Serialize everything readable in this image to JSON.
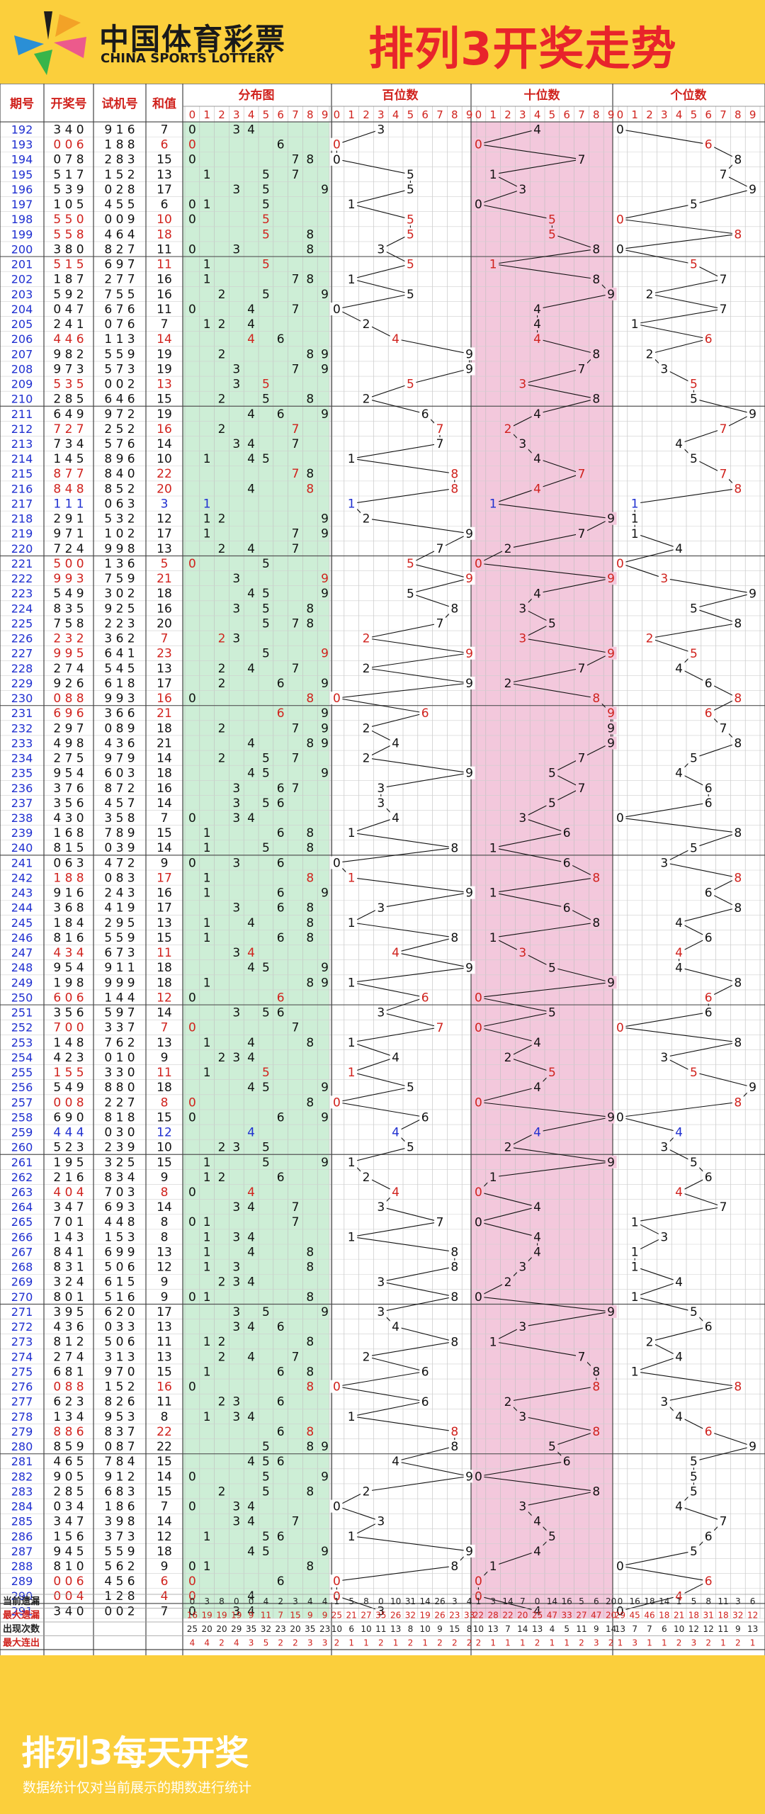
{
  "header": {
    "logo_cn": "中国体育彩票",
    "logo_en": "CHINA SPORTS LOTTERY",
    "title": "排列3开奖走势"
  },
  "footer": {
    "title": "排列3每天开奖",
    "note": "数据统计仅对当前展示的期数进行统计"
  },
  "chart_data": {
    "type": "table",
    "title": "排列3开奖走势",
    "columns": [
      "期号",
      "开奖号",
      "试机号",
      "和值",
      "分布图",
      "百位数",
      "十位数",
      "个位数"
    ],
    "digit_labels": [
      "0",
      "1",
      "2",
      "3",
      "4",
      "5",
      "6",
      "7",
      "8",
      "9"
    ],
    "colors": {
      "red": "#d0221d",
      "blue": "#1f2fd0",
      "green_bg": "#cdeed6",
      "pink_bg": "#f3c8dc",
      "header_red": "#d0221d"
    },
    "rows": [
      {
        "issue": "192",
        "draw": "340",
        "test": "916",
        "sum": "7"
      },
      {
        "issue": "193",
        "draw": "006",
        "test": "188",
        "sum": "6"
      },
      {
        "issue": "194",
        "draw": "078",
        "test": "283",
        "sum": "15"
      },
      {
        "issue": "195",
        "draw": "517",
        "test": "152",
        "sum": "13"
      },
      {
        "issue": "196",
        "draw": "539",
        "test": "028",
        "sum": "17"
      },
      {
        "issue": "197",
        "draw": "105",
        "test": "455",
        "sum": "6"
      },
      {
        "issue": "198",
        "draw": "550",
        "test": "009",
        "sum": "10"
      },
      {
        "issue": "199",
        "draw": "558",
        "test": "464",
        "sum": "18"
      },
      {
        "issue": "200",
        "draw": "380",
        "test": "827",
        "sum": "11"
      },
      {
        "issue": "201",
        "draw": "515",
        "test": "697",
        "sum": "11"
      },
      {
        "issue": "202",
        "draw": "187",
        "test": "277",
        "sum": "16"
      },
      {
        "issue": "203",
        "draw": "592",
        "test": "755",
        "sum": "16"
      },
      {
        "issue": "204",
        "draw": "047",
        "test": "676",
        "sum": "11"
      },
      {
        "issue": "205",
        "draw": "241",
        "test": "076",
        "sum": "7"
      },
      {
        "issue": "206",
        "draw": "446",
        "test": "113",
        "sum": "14"
      },
      {
        "issue": "207",
        "draw": "982",
        "test": "559",
        "sum": "19"
      },
      {
        "issue": "208",
        "draw": "973",
        "test": "573",
        "sum": "19"
      },
      {
        "issue": "209",
        "draw": "535",
        "test": "002",
        "sum": "13"
      },
      {
        "issue": "210",
        "draw": "285",
        "test": "646",
        "sum": "15"
      },
      {
        "issue": "211",
        "draw": "649",
        "test": "972",
        "sum": "19"
      },
      {
        "issue": "212",
        "draw": "727",
        "test": "252",
        "sum": "16"
      },
      {
        "issue": "213",
        "draw": "734",
        "test": "576",
        "sum": "14"
      },
      {
        "issue": "214",
        "draw": "145",
        "test": "896",
        "sum": "10"
      },
      {
        "issue": "215",
        "draw": "877",
        "test": "840",
        "sum": "22"
      },
      {
        "issue": "216",
        "draw": "848",
        "test": "852",
        "sum": "20"
      },
      {
        "issue": "217",
        "draw": "111",
        "test": "063",
        "sum": "3"
      },
      {
        "issue": "218",
        "draw": "291",
        "test": "532",
        "sum": "12"
      },
      {
        "issue": "219",
        "draw": "971",
        "test": "102",
        "sum": "17"
      },
      {
        "issue": "220",
        "draw": "724",
        "test": "998",
        "sum": "13"
      },
      {
        "issue": "221",
        "draw": "500",
        "test": "136",
        "sum": "5"
      },
      {
        "issue": "222",
        "draw": "993",
        "test": "759",
        "sum": "21"
      },
      {
        "issue": "223",
        "draw": "549",
        "test": "302",
        "sum": "18"
      },
      {
        "issue": "224",
        "draw": "835",
        "test": "925",
        "sum": "16"
      },
      {
        "issue": "225",
        "draw": "758",
        "test": "223",
        "sum": "20"
      },
      {
        "issue": "226",
        "draw": "232",
        "test": "362",
        "sum": "7"
      },
      {
        "issue": "227",
        "draw": "995",
        "test": "641",
        "sum": "23"
      },
      {
        "issue": "228",
        "draw": "274",
        "test": "545",
        "sum": "13"
      },
      {
        "issue": "229",
        "draw": "926",
        "test": "618",
        "sum": "17"
      },
      {
        "issue": "230",
        "draw": "088",
        "test": "993",
        "sum": "16"
      },
      {
        "issue": "231",
        "draw": "696",
        "test": "366",
        "sum": "21"
      },
      {
        "issue": "232",
        "draw": "297",
        "test": "089",
        "sum": "18"
      },
      {
        "issue": "233",
        "draw": "498",
        "test": "436",
        "sum": "21"
      },
      {
        "issue": "234",
        "draw": "275",
        "test": "979",
        "sum": "14"
      },
      {
        "issue": "235",
        "draw": "954",
        "test": "603",
        "sum": "18"
      },
      {
        "issue": "236",
        "draw": "376",
        "test": "872",
        "sum": "16"
      },
      {
        "issue": "237",
        "draw": "356",
        "test": "457",
        "sum": "14"
      },
      {
        "issue": "238",
        "draw": "430",
        "test": "358",
        "sum": "7"
      },
      {
        "issue": "239",
        "draw": "168",
        "test": "789",
        "sum": "15"
      },
      {
        "issue": "240",
        "draw": "815",
        "test": "039",
        "sum": "14"
      },
      {
        "issue": "241",
        "draw": "063",
        "test": "472",
        "sum": "9"
      },
      {
        "issue": "242",
        "draw": "188",
        "test": "083",
        "sum": "17"
      },
      {
        "issue": "243",
        "draw": "916",
        "test": "243",
        "sum": "16"
      },
      {
        "issue": "244",
        "draw": "368",
        "test": "419",
        "sum": "17"
      },
      {
        "issue": "245",
        "draw": "184",
        "test": "295",
        "sum": "13"
      },
      {
        "issue": "246",
        "draw": "816",
        "test": "559",
        "sum": "15"
      },
      {
        "issue": "247",
        "draw": "434",
        "test": "673",
        "sum": "11"
      },
      {
        "issue": "248",
        "draw": "954",
        "test": "911",
        "sum": "18"
      },
      {
        "issue": "249",
        "draw": "198",
        "test": "999",
        "sum": "18"
      },
      {
        "issue": "250",
        "draw": "606",
        "test": "144",
        "sum": "12"
      },
      {
        "issue": "251",
        "draw": "356",
        "test": "597",
        "sum": "14"
      },
      {
        "issue": "252",
        "draw": "700",
        "test": "337",
        "sum": "7"
      },
      {
        "issue": "253",
        "draw": "148",
        "test": "762",
        "sum": "13"
      },
      {
        "issue": "254",
        "draw": "423",
        "test": "010",
        "sum": "9"
      },
      {
        "issue": "255",
        "draw": "155",
        "test": "330",
        "sum": "11"
      },
      {
        "issue": "256",
        "draw": "549",
        "test": "880",
        "sum": "18"
      },
      {
        "issue": "257",
        "draw": "008",
        "test": "227",
        "sum": "8"
      },
      {
        "issue": "258",
        "draw": "690",
        "test": "818",
        "sum": "15"
      },
      {
        "issue": "259",
        "draw": "444",
        "test": "030",
        "sum": "12"
      },
      {
        "issue": "260",
        "draw": "523",
        "test": "239",
        "sum": "10"
      },
      {
        "issue": "261",
        "draw": "195",
        "test": "325",
        "sum": "15"
      },
      {
        "issue": "262",
        "draw": "216",
        "test": "834",
        "sum": "9"
      },
      {
        "issue": "263",
        "draw": "404",
        "test": "703",
        "sum": "8"
      },
      {
        "issue": "264",
        "draw": "347",
        "test": "693",
        "sum": "14"
      },
      {
        "issue": "265",
        "draw": "701",
        "test": "448",
        "sum": "8"
      },
      {
        "issue": "266",
        "draw": "143",
        "test": "153",
        "sum": "8"
      },
      {
        "issue": "267",
        "draw": "841",
        "test": "699",
        "sum": "13"
      },
      {
        "issue": "268",
        "draw": "831",
        "test": "506",
        "sum": "12"
      },
      {
        "issue": "269",
        "draw": "324",
        "test": "615",
        "sum": "9"
      },
      {
        "issue": "270",
        "draw": "801",
        "test": "516",
        "sum": "9"
      },
      {
        "issue": "271",
        "draw": "395",
        "test": "620",
        "sum": "17"
      },
      {
        "issue": "272",
        "draw": "436",
        "test": "033",
        "sum": "13"
      },
      {
        "issue": "273",
        "draw": "812",
        "test": "506",
        "sum": "11"
      },
      {
        "issue": "274",
        "draw": "274",
        "test": "313",
        "sum": "13"
      },
      {
        "issue": "275",
        "draw": "681",
        "test": "970",
        "sum": "15"
      },
      {
        "issue": "276",
        "draw": "088",
        "test": "152",
        "sum": "16"
      },
      {
        "issue": "277",
        "draw": "623",
        "test": "826",
        "sum": "11"
      },
      {
        "issue": "278",
        "draw": "134",
        "test": "953",
        "sum": "8"
      },
      {
        "issue": "279",
        "draw": "886",
        "test": "837",
        "sum": "22"
      },
      {
        "issue": "280",
        "draw": "859",
        "test": "087",
        "sum": "22"
      },
      {
        "issue": "281",
        "draw": "465",
        "test": "784",
        "sum": "15"
      },
      {
        "issue": "282",
        "draw": "905",
        "test": "912",
        "sum": "14"
      },
      {
        "issue": "283",
        "draw": "285",
        "test": "683",
        "sum": "15"
      },
      {
        "issue": "284",
        "draw": "034",
        "test": "186",
        "sum": "7"
      },
      {
        "issue": "285",
        "draw": "347",
        "test": "398",
        "sum": "14"
      },
      {
        "issue": "286",
        "draw": "156",
        "test": "373",
        "sum": "12"
      },
      {
        "issue": "287",
        "draw": "945",
        "test": "559",
        "sum": "18"
      },
      {
        "issue": "288",
        "draw": "810",
        "test": "562",
        "sum": "9"
      },
      {
        "issue": "289",
        "draw": "006",
        "test": "456",
        "sum": "6"
      },
      {
        "issue": "290",
        "draw": "004",
        "test": "128",
        "sum": "4"
      },
      {
        "issue": "291",
        "draw": "340",
        "test": "002",
        "sum": "7"
      }
    ],
    "stats": [
      {
        "label": "当前遗漏",
        "color": "#222222",
        "dist": [
          "0",
          "3",
          "8",
          "0",
          "0",
          "4",
          "2",
          "3",
          "4",
          "4"
        ],
        "hundreds": [
          "1",
          "5",
          "8",
          "0",
          "10",
          "31",
          "14",
          "26",
          "3",
          "4"
        ],
        "tens": [
          "1",
          "3",
          "14",
          "7",
          "0",
          "14",
          "16",
          "5",
          "6",
          "20"
        ],
        "units": [
          "0",
          "16",
          "18",
          "14",
          "1",
          "5",
          "8",
          "11",
          "3",
          "6"
        ]
      },
      {
        "label": "最大遗漏",
        "color": "#d0221d",
        "dist": [
          "16",
          "19",
          "19",
          "19",
          "9",
          "11",
          "7",
          "15",
          "9",
          "9"
        ],
        "hundreds": [
          "25",
          "21",
          "27",
          "35",
          "26",
          "32",
          "19",
          "26",
          "23",
          "33"
        ],
        "tens": [
          "22",
          "28",
          "22",
          "20",
          "25",
          "47",
          "33",
          "27",
          "47",
          "20"
        ],
        "units": [
          "29",
          "45",
          "46",
          "18",
          "21",
          "18",
          "31",
          "18",
          "32",
          "12"
        ]
      },
      {
        "label": "出现次数",
        "color": "#222222",
        "dist": [
          "25",
          "20",
          "20",
          "29",
          "35",
          "32",
          "23",
          "20",
          "35",
          "23"
        ],
        "hundreds": [
          "10",
          "6",
          "10",
          "11",
          "13",
          "8",
          "10",
          "9",
          "15",
          "8"
        ],
        "tens": [
          "10",
          "13",
          "7",
          "14",
          "13",
          "4",
          "5",
          "11",
          "9",
          "14"
        ],
        "units": [
          "13",
          "7",
          "7",
          "6",
          "10",
          "12",
          "12",
          "11",
          "9",
          "13"
        ]
      },
      {
        "label": "最大连出",
        "color": "#d0221d",
        "dist": [
          "4",
          "4",
          "2",
          "4",
          "3",
          "5",
          "2",
          "2",
          "3",
          "3"
        ],
        "hundreds": [
          "2",
          "1",
          "1",
          "2",
          "1",
          "2",
          "1",
          "2",
          "2",
          "2"
        ],
        "tens": [
          "2",
          "1",
          "1",
          "1",
          "2",
          "1",
          "1",
          "2",
          "3",
          "2"
        ],
        "units": [
          "1",
          "3",
          "1",
          "1",
          "2",
          "3",
          "2",
          "1",
          "2",
          "1"
        ]
      }
    ],
    "red_draw_issues": [
      "193",
      "198",
      "199",
      "201",
      "206",
      "209",
      "212",
      "215",
      "216",
      "221",
      "222",
      "226",
      "227",
      "230",
      "231",
      "242",
      "247",
      "250",
      "252",
      "255",
      "257",
      "263",
      "276",
      "279",
      "289",
      "290"
    ],
    "blue_draw_issues": [
      "217",
      "259"
    ]
  }
}
